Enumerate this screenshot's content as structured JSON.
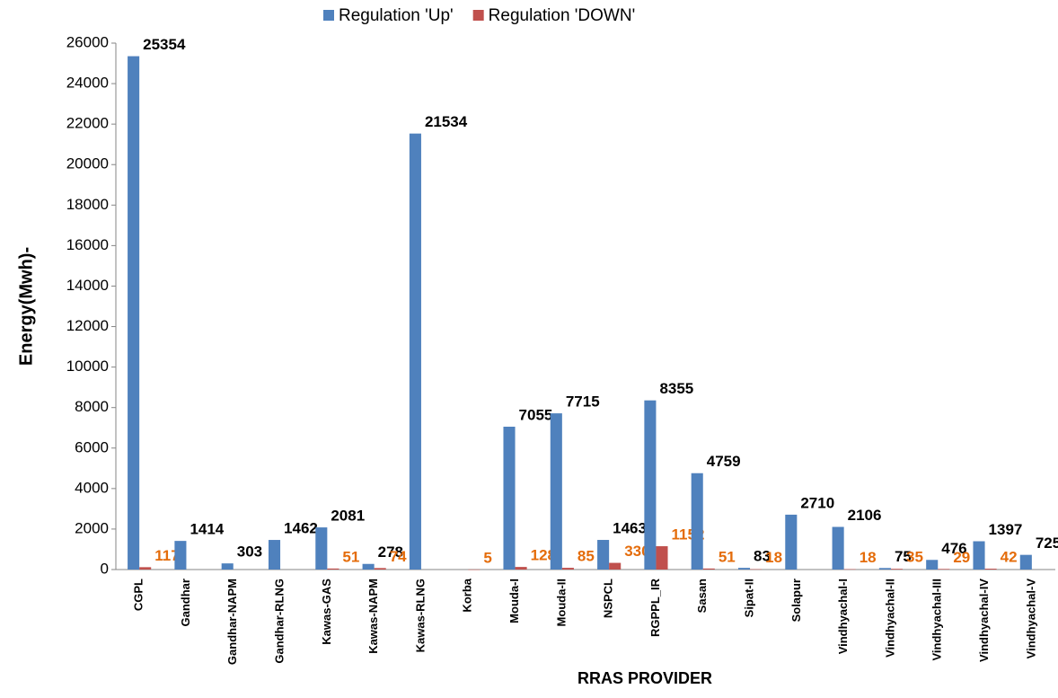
{
  "chart_data": {
    "type": "bar",
    "x_label": "RRAS PROVIDER",
    "y_label": "Energy(Mwh)-",
    "categories": [
      "CGPL",
      "Gandhar",
      "Gandhar-NAPM",
      "Gandhar-RLNG",
      "Kawas-GAS",
      "Kawas-NAPM",
      "Kawas-RLNG",
      "Korba",
      "Mouda-I",
      "Mouda-II",
      "NSPCL",
      "RGPPL_IR",
      "Sasan",
      "Sipat-II",
      "Solapur",
      "Vindhyachal-I",
      "Vindhyachal-II",
      "Vindhyachal-III",
      "Vindhyachal-IV",
      "Vindhyachal-V"
    ],
    "series": [
      {
        "name": "Regulation 'Up'",
        "color": "#4f81bd",
        "label_color": "#000000",
        "values": [
          25354,
          1414,
          303,
          1462,
          2081,
          278,
          21534,
          null,
          7055,
          7715,
          1463,
          8355,
          4759,
          83,
          2710,
          2106,
          75,
          476,
          1397,
          725
        ]
      },
      {
        "name": "Regulation 'DOWN'",
        "color": "#c0504d",
        "label_color": "#e46c0a",
        "values": [
          117,
          null,
          null,
          null,
          51,
          74,
          null,
          5,
          128,
          85,
          330,
          1152,
          51,
          18,
          null,
          18,
          35,
          29,
          42,
          null
        ]
      }
    ],
    "ylim": [
      0,
      26000
    ],
    "yticks": [
      0,
      2000,
      4000,
      6000,
      8000,
      10000,
      12000,
      14000,
      16000,
      18000,
      20000,
      22000,
      24000,
      26000
    ],
    "grid": false,
    "legend": "top"
  }
}
